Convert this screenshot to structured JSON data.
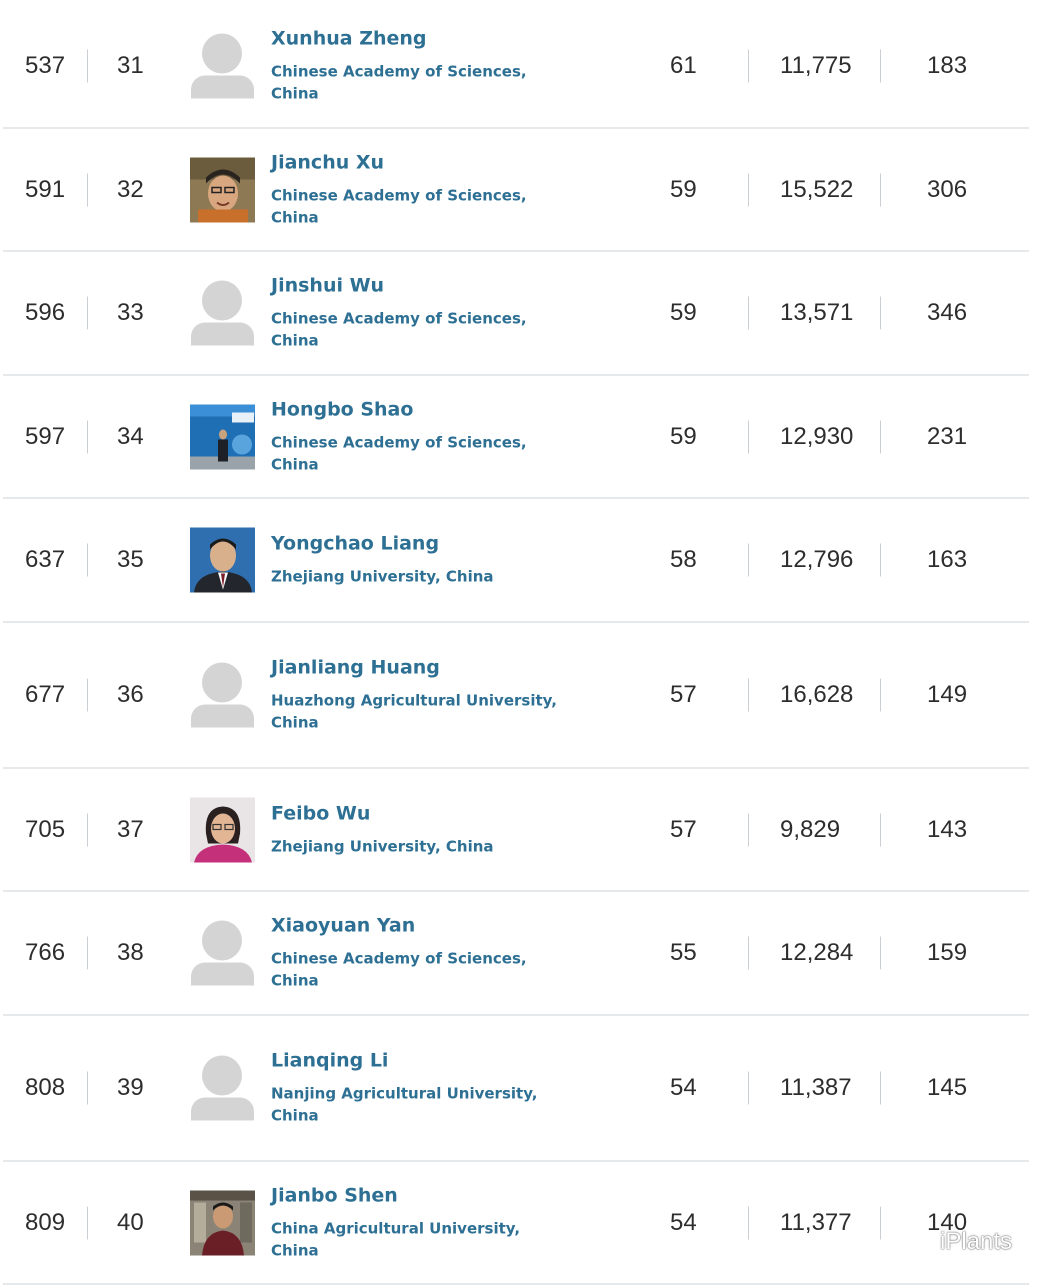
{
  "rows": [
    {
      "world_rank": "537",
      "national_rank": "31",
      "name": "Xunhua Zheng",
      "affiliation": "Chinese Academy of Sciences, China",
      "h_index": "61",
      "citations": "11,775",
      "publications": "183",
      "photo": "placeholder"
    },
    {
      "world_rank": "591",
      "national_rank": "32",
      "name": "Jianchu Xu",
      "affiliation": "Chinese Academy of Sciences, China",
      "h_index": "59",
      "citations": "15,522",
      "publications": "306",
      "photo": "man-smiling"
    },
    {
      "world_rank": "596",
      "national_rank": "33",
      "name": "Jinshui Wu",
      "affiliation": "Chinese Academy of Sciences, China",
      "h_index": "59",
      "citations": "13,571",
      "publications": "346",
      "photo": "placeholder"
    },
    {
      "world_rank": "597",
      "national_rank": "34",
      "name": "Hongbo Shao",
      "affiliation": "Chinese Academy of Sciences, China",
      "h_index": "59",
      "citations": "12,930",
      "publications": "231",
      "photo": "man-at-conference"
    },
    {
      "world_rank": "637",
      "national_rank": "35",
      "name": "Yongchao Liang",
      "affiliation": "Zhejiang University, China",
      "h_index": "58",
      "citations": "12,796",
      "publications": "163",
      "photo": "man-in-suit"
    },
    {
      "world_rank": "677",
      "national_rank": "36",
      "name": "Jianliang Huang",
      "affiliation": "Huazhong Agricultural University, China",
      "h_index": "57",
      "citations": "16,628",
      "publications": "149",
      "photo": "placeholder"
    },
    {
      "world_rank": "705",
      "national_rank": "37",
      "name": "Feibo Wu",
      "affiliation": "Zhejiang University, China",
      "h_index": "57",
      "citations": "9,829",
      "publications": "143",
      "photo": "woman-portrait"
    },
    {
      "world_rank": "766",
      "national_rank": "38",
      "name": "Xiaoyuan Yan",
      "affiliation": "Chinese Academy of Sciences, China",
      "h_index": "55",
      "citations": "12,284",
      "publications": "159",
      "photo": "placeholder"
    },
    {
      "world_rank": "808",
      "national_rank": "39",
      "name": "Lianqing Li",
      "affiliation": "Nanjing Agricultural University, China",
      "h_index": "54",
      "citations": "11,387",
      "publications": "145",
      "photo": "placeholder"
    },
    {
      "world_rank": "809",
      "national_rank": "40",
      "name": "Jianbo Shen",
      "affiliation": "China Agricultural University, China",
      "h_index": "54",
      "citations": "11,377",
      "publications": "140",
      "photo": "man-in-lab"
    }
  ],
  "watermark": {
    "text": "iPlants",
    "icon": "wechat-icon"
  },
  "colors": {
    "name_link": "#2e7094",
    "text": "#2d2d2d",
    "placeholder": "#d4d4d4",
    "divider": "#e6e9ec"
  }
}
